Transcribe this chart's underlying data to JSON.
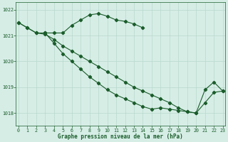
{
  "title": "Graphe pression niveau de la mer (hPa)",
  "background_color": "#d6ede6",
  "grid_color": "#b8d8cc",
  "line_color": "#1a5c2a",
  "ylim": [
    1017.5,
    1022.3
  ],
  "xlim": [
    -0.3,
    23.3
  ],
  "yticks": [
    1018,
    1019,
    1020,
    1021,
    1022
  ],
  "xticks": [
    0,
    1,
    2,
    3,
    4,
    5,
    6,
    7,
    8,
    9,
    10,
    11,
    12,
    13,
    14,
    15,
    16,
    17,
    18,
    19,
    20,
    21,
    22,
    23
  ],
  "series1_x": [
    0,
    1,
    2,
    3,
    4,
    5,
    6,
    7,
    8,
    9,
    10,
    11,
    12,
    13,
    14
  ],
  "series1_y": [
    1021.5,
    1021.3,
    1021.1,
    1021.1,
    1021.1,
    1021.1,
    1021.4,
    1021.6,
    1021.8,
    1021.85,
    1021.75,
    1021.6,
    1021.55,
    1021.45,
    1021.3
  ],
  "series2_x": [
    0,
    1,
    2,
    3,
    4,
    5,
    6,
    7,
    8,
    9,
    10,
    11,
    12,
    13,
    14,
    15,
    16,
    17,
    18,
    19,
    20,
    21,
    22,
    23
  ],
  "series2_y": [
    1021.5,
    1021.3,
    1021.1,
    1021.05,
    1020.85,
    1020.6,
    1020.4,
    1020.2,
    1020.0,
    1019.8,
    1019.6,
    1019.4,
    1019.2,
    1019.0,
    1018.85,
    1018.7,
    1018.55,
    1018.4,
    1018.2,
    1018.05,
    1018.0,
    1018.9,
    1019.2,
    1018.85
  ],
  "series3_x": [
    3,
    4,
    5,
    6,
    7,
    8,
    9,
    10,
    11,
    12,
    13,
    14,
    15,
    16,
    17,
    18,
    19,
    20,
    21,
    22,
    23
  ],
  "series3_y": [
    1021.1,
    1020.7,
    1020.3,
    1020.0,
    1019.7,
    1019.4,
    1019.15,
    1018.9,
    1018.7,
    1018.55,
    1018.4,
    1018.25,
    1018.15,
    1018.2,
    1018.15,
    1018.1,
    1018.05,
    1018.0,
    1018.4,
    1018.8,
    1018.85
  ]
}
